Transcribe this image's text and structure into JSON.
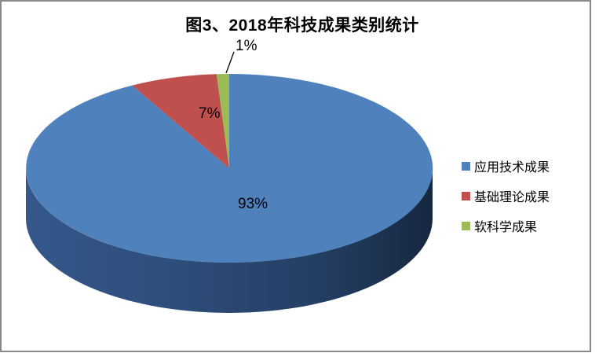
{
  "chart_data": {
    "type": "pie",
    "style": "3d-pie",
    "title": "图3、2018年科技成果类别统计",
    "categories": [
      "应用技术成果",
      "基础理论成果",
      "软科学成果"
    ],
    "values": [
      93,
      7,
      1
    ],
    "unit": "%",
    "data_labels": [
      "93%",
      "7%",
      "1%"
    ],
    "colors": [
      "#4F81BD",
      "#C0504D",
      "#9BBB59"
    ],
    "side_gradient": [
      "#35578A",
      "#2C4C78",
      "#1A2F50"
    ],
    "legend_position": "right",
    "start_angle_deg": 90,
    "direction": "clockwise",
    "frame_border_color": "#898989",
    "label_leader_line": true
  }
}
